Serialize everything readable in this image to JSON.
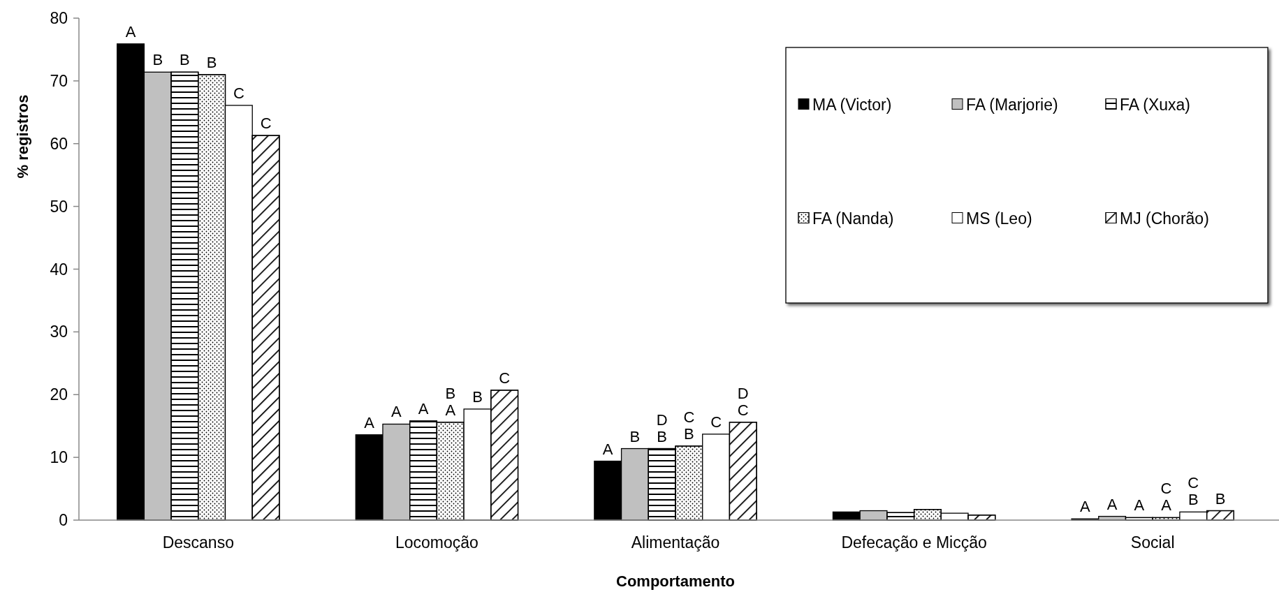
{
  "chart_data": {
    "type": "bar",
    "xlabel": "Comportamento",
    "ylabel": "% registros",
    "categories": [
      "Descanso",
      "Locomoção",
      "Alimentação",
      "Defecação e Micção",
      "Social"
    ],
    "series": [
      {
        "name": "MA (Victor)",
        "color": "#000000",
        "values": [
          75.9,
          13.6,
          9.4,
          1.3,
          0.2
        ],
        "value_labels": [
          "A",
          "A",
          "A",
          null,
          "A"
        ]
      },
      {
        "name": "FA (Marjorie)",
        "color": "#c0c0c0",
        "values": [
          71.4,
          15.3,
          11.4,
          1.5,
          0.6
        ],
        "value_labels": [
          "B",
          "A",
          "B",
          null,
          "A"
        ]
      },
      {
        "name": "FA (Xuxa)",
        "color": "#ffffff",
        "values": [
          71.4,
          15.8,
          11.4,
          1.2,
          0.4
        ],
        "value_labels": [
          "B",
          "A",
          "D\nB",
          null,
          "A"
        ]
      },
      {
        "name": "FA (Nanda)",
        "color": "#ffffff",
        "values": [
          71.0,
          15.6,
          11.8,
          1.7,
          0.4
        ],
        "value_labels": [
          "B",
          "B\nA",
          "C\nB",
          null,
          "C\nA"
        ]
      },
      {
        "name": "MS (Leo)",
        "color": "#ffffff",
        "values": [
          66.1,
          17.7,
          13.7,
          1.1,
          1.3
        ],
        "value_labels": [
          "C",
          "B",
          "C",
          null,
          "C\nB"
        ]
      },
      {
        "name": "MJ (Chorão)",
        "color": "#ffffff",
        "values": [
          61.3,
          20.7,
          15.6,
          0.8,
          1.5
        ],
        "value_labels": [
          "C",
          "C",
          "D\nC",
          null,
          "B"
        ]
      }
    ],
    "ylim": [
      0,
      80
    ],
    "yticks": [
      0,
      10,
      20,
      30,
      40,
      50,
      60,
      70,
      80
    ],
    "grid": false,
    "legend": "top right"
  }
}
